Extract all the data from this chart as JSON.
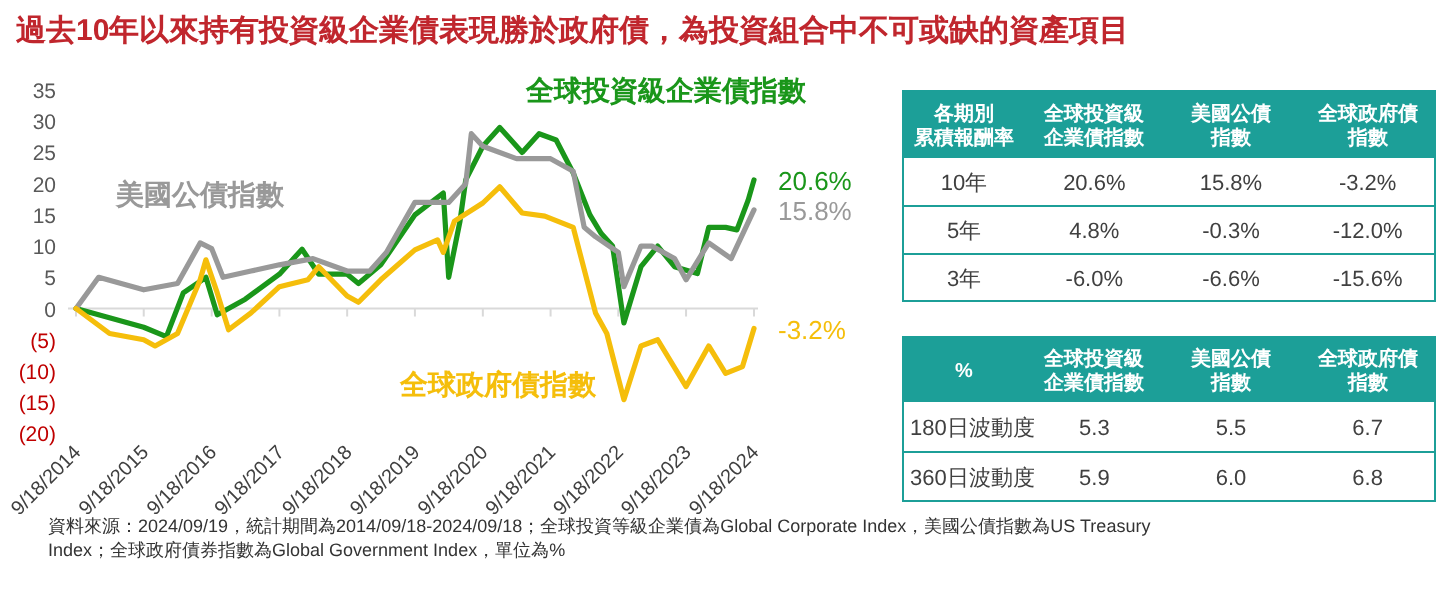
{
  "chart_data": [
    {
      "type": "line",
      "title": "過去10年以來持有投資級企業債表現勝於政府債，為投資組合中不可或缺的資產項目",
      "xlim": [
        "2014-09-18",
        "2024-09-18"
      ],
      "ylim": [
        -20,
        35
      ],
      "xticks": [
        {
          "value": "2014-09-18",
          "label": "9/18/2014"
        },
        {
          "value": "2015-09-18",
          "label": "9/18/2015"
        },
        {
          "value": "2016-09-18",
          "label": "9/18/2016"
        },
        {
          "value": "2017-09-18",
          "label": "9/18/2017"
        },
        {
          "value": "2018-09-18",
          "label": "9/18/2018"
        },
        {
          "value": "2019-09-18",
          "label": "9/18/2019"
        },
        {
          "value": "2020-09-18",
          "label": "9/18/2020"
        },
        {
          "value": "2021-09-18",
          "label": "9/18/2021"
        },
        {
          "value": "2022-09-18",
          "label": "9/18/2022"
        },
        {
          "value": "2023-09-18",
          "label": "9/18/2023"
        },
        {
          "value": "2024-09-18",
          "label": "9/18/2024"
        }
      ],
      "yticks": [
        35,
        30,
        25,
        20,
        15,
        10,
        5,
        0,
        {
          "value": -5,
          "label": "(5)"
        },
        {
          "value": -10,
          "label": "(10)"
        },
        {
          "value": -15,
          "label": "(15)"
        },
        {
          "value": -20,
          "label": "(20)"
        }
      ],
      "series": [
        {
          "name": "全球投資級企業債指數",
          "color": "#1a961a",
          "x": [
            "2014-09-18",
            "2015-09-18",
            "2016-01-18",
            "2016-04-18",
            "2016-08-18",
            "2016-10-18",
            "2017-03-18",
            "2017-09-18",
            "2018-01-18",
            "2018-04-18",
            "2018-09-18",
            "2018-11-18",
            "2019-03-18",
            "2019-09-18",
            "2020-02-18",
            "2020-03-18",
            "2020-05-18",
            "2020-06-18",
            "2020-09-18",
            "2020-12-18",
            "2021-04-18",
            "2021-07-18",
            "2021-10-18",
            "2022-01-18",
            "2022-04-18",
            "2022-06-18",
            "2022-08-18",
            "2022-10-18",
            "2023-01-18",
            "2023-04-18",
            "2023-07-18",
            "2023-11-18",
            "2024-01-18",
            "2024-04-18",
            "2024-06-18",
            "2024-08-18",
            "2024-09-18"
          ],
          "values": [
            0,
            -3,
            -4.5,
            2.5,
            5,
            -1,
            1.5,
            5.5,
            9.5,
            5.5,
            5.5,
            4,
            7,
            15,
            18.5,
            5,
            14,
            20.6,
            26,
            29,
            25,
            28,
            27,
            21.7,
            15,
            12,
            10,
            -2.3,
            6.7,
            10,
            6.7,
            5.6,
            13,
            13,
            12.6,
            17.4,
            20.6
          ]
        },
        {
          "name": "美國公債指數",
          "color": "#999999",
          "x": [
            "2014-09-18",
            "2015-01-18",
            "2015-09-18",
            "2016-03-18",
            "2016-07-18",
            "2016-09-18",
            "2016-11-18",
            "2017-04-18",
            "2017-09-18",
            "2018-03-18",
            "2018-09-18",
            "2019-01-18",
            "2019-04-18",
            "2019-09-18",
            "2020-03-18",
            "2020-06-18",
            "2020-07-18",
            "2020-09-18",
            "2021-03-18",
            "2021-09-18",
            "2022-01-18",
            "2022-03-18",
            "2022-05-18",
            "2022-09-18",
            "2022-10-18",
            "2023-01-18",
            "2023-03-18",
            "2023-07-18",
            "2023-09-18",
            "2024-01-18",
            "2024-05-18",
            "2024-09-18"
          ],
          "values": [
            0,
            5,
            3,
            4,
            10.5,
            9.6,
            5,
            6,
            7,
            8,
            6,
            6,
            9,
            17,
            17,
            20,
            28,
            26,
            24,
            24,
            22,
            13,
            11.5,
            9,
            3.5,
            10,
            10,
            8,
            4.6,
            10.5,
            8,
            15.8
          ]
        },
        {
          "name": "全球政府債指數",
          "color": "#f5be0b",
          "x": [
            "2014-09-18",
            "2015-03-18",
            "2015-09-18",
            "2015-11-18",
            "2016-03-18",
            "2016-07-18",
            "2016-08-18",
            "2016-10-18",
            "2016-12-18",
            "2017-04-18",
            "2017-09-18",
            "2018-02-18",
            "2018-04-18",
            "2018-09-18",
            "2018-11-18",
            "2019-03-18",
            "2019-09-18",
            "2020-01-18",
            "2020-02-18",
            "2020-04-18",
            "2020-09-18",
            "2020-12-18",
            "2021-04-18",
            "2021-08-18",
            "2022-01-18",
            "2022-05-18",
            "2022-07-18",
            "2022-10-18",
            "2023-01-18",
            "2023-04-18",
            "2023-09-18",
            "2024-01-18",
            "2024-04-18",
            "2024-07-18",
            "2024-09-18"
          ],
          "values": [
            0,
            -4,
            -5,
            -6,
            -4,
            4.6,
            7.8,
            2.5,
            -3.4,
            -0.7,
            3.5,
            4.6,
            6.7,
            2,
            1,
            4.6,
            9.4,
            11,
            9,
            14,
            16.9,
            19.5,
            15.3,
            14.8,
            13,
            -0.7,
            -4,
            -14.6,
            -6,
            -5,
            -12.5,
            -6,
            -10.4,
            -9.3,
            -3.2
          ]
        }
      ],
      "annotations": [
        {
          "text": "20.6%",
          "x": "2024-09-18",
          "y": 20.6
        },
        {
          "text": "15.8%",
          "x": "2024-09-18",
          "y": 15.8
        },
        {
          "text": "-3.2%",
          "x": "2024-09-18",
          "y": -3.2
        },
        "資料來源：2024/09/19，統計期間為2014/09/18-2024/09/18；全球投資等級企業債為Global Corporate Index，美國公債指數為US Treasury Index；全球政府債券指數為Global Government Index，單位為%"
      ]
    },
    {
      "type": "other",
      "ylabel": "各期別累積報酬率",
      "categories": [
        "全球投資級企業債指數",
        "美國公債指數",
        "全球政府債指數"
      ],
      "y_categories": [
        "10年",
        "5年",
        "3年"
      ],
      "cell_labels": [
        [
          "20.6%",
          "15.8%",
          "-3.2%"
        ],
        [
          "4.8%",
          "-0.3%",
          "-12.0%"
        ],
        [
          "-6.0%",
          "-6.6%",
          "-15.6%"
        ]
      ]
    },
    {
      "type": "other",
      "ylabel": "%",
      "categories": [
        "全球投資級企業債指數",
        "美國公債指數",
        "全球政府債指數"
      ],
      "y_categories": [
        "180日波動度",
        "360日波動度"
      ],
      "cell_labels": [
        [
          "5.3",
          "5.5",
          "6.7"
        ],
        [
          "5.9",
          "6.0",
          "6.8"
        ]
      ]
    }
  ]
}
